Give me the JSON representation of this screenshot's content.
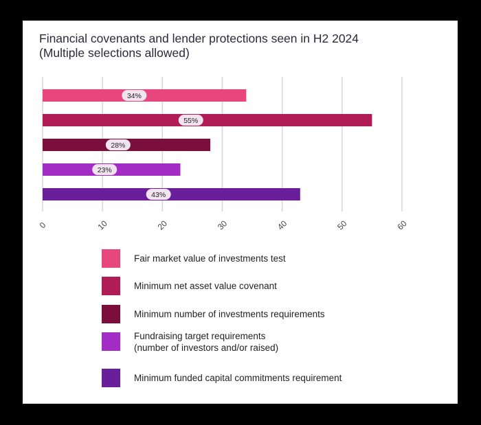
{
  "chart_data": {
    "type": "bar",
    "orientation": "horizontal",
    "title": "Financial covenants and lender protections seen in H2 2024",
    "subtitle": "(Multiple selections allowed)",
    "categories": [
      "Fair market value of investments test",
      "Minimum net asset value covenant",
      "Minimum number of investments requirements",
      "Fundraising target requirements\n(number of investors and/or raised)",
      "Minimum funded capital commitments requirement"
    ],
    "values": [
      34,
      55,
      28,
      23,
      43
    ],
    "data_labels": [
      "34%",
      "55%",
      "28%",
      "23%",
      "43%"
    ],
    "colors": [
      "#e8477e",
      "#b01c55",
      "#7a0f3c",
      "#a22cc4",
      "#6a1f9a"
    ],
    "xlim": [
      0,
      60
    ],
    "x_ticks": [
      "0",
      "10",
      "20",
      "30",
      "40",
      "50",
      "60"
    ],
    "grid": true,
    "legend_placement": "bottom"
  }
}
